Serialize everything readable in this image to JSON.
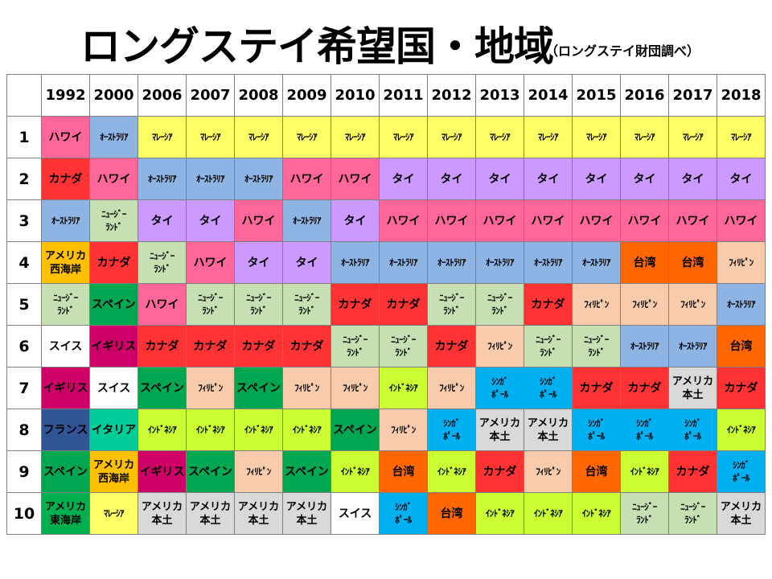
{
  "title": "ロングステイ希望国・地域",
  "subtitle": "（ロングステイ財団調べ）",
  "corner": "",
  "years": [
    "1992",
    "2000",
    "2006",
    "2007",
    "2008",
    "2009",
    "2010",
    "2011",
    "2012",
    "2013",
    "2014",
    "2015",
    "2016",
    "2017",
    "2018"
  ],
  "colors": {
    "ハワイ": "#ff6699",
    "ｵｰｽﾄﾗﾘｱ": "#8eb4e3",
    "ﾏﾚｰｼｱ": "#ffff66",
    "カナダ": "#ff3333",
    "タイ": "#cc99ff",
    "ﾆｭｰｼﾞｰﾗﾝﾄﾞ": "#c6e0b4",
    "アメリカ西海岸": "#ffc000",
    "スペイン": "#00a650",
    "スイス": "#ffffff",
    "イギリス": "#cc0066",
    "フランス": "#305496",
    "イタリア": "#00cc99",
    "アメリカ東海岸": "#00b050",
    "ﾌｨﾘﾋﾟﾝ": "#f8cbad",
    "ｲﾝﾄﾞﾈｼｱ": "#ccff33",
    "台湾": "#ff6600",
    "ｼﾝｶﾞﾎﾟｰﾙ": "#00b0f0",
    "アメリカ本土": "#d9d9d9"
  },
  "rows": [
    {
      "rank": "1",
      "cells": [
        "ハワイ",
        "ｵｰｽﾄﾗﾘｱ",
        "ﾏﾚｰｼｱ",
        "ﾏﾚｰｼｱ",
        "ﾏﾚｰｼｱ",
        "ﾏﾚｰｼｱ",
        "ﾏﾚｰｼｱ",
        "ﾏﾚｰｼｱ",
        "ﾏﾚｰｼｱ",
        "ﾏﾚｰｼｱ",
        "ﾏﾚｰｼｱ",
        "ﾏﾚｰｼｱ",
        "ﾏﾚｰｼｱ",
        "ﾏﾚｰｼｱ",
        "ﾏﾚｰｼｱ"
      ]
    },
    {
      "rank": "2",
      "cells": [
        "カナダ",
        "ハワイ",
        "ｵｰｽﾄﾗﾘｱ",
        "ｵｰｽﾄﾗﾘｱ",
        "ｵｰｽﾄﾗﾘｱ",
        "ハワイ",
        "ハワイ",
        "タイ",
        "タイ",
        "タイ",
        "タイ",
        "タイ",
        "タイ",
        "タイ",
        "タイ"
      ]
    },
    {
      "rank": "3",
      "cells": [
        "ｵｰｽﾄﾗﾘｱ",
        "ﾆｭｰｼﾞｰﾗﾝﾄﾞ",
        "タイ",
        "タイ",
        "ハワイ",
        "ｵｰｽﾄﾗﾘｱ",
        "タイ",
        "ハワイ",
        "ハワイ",
        "ハワイ",
        "ハワイ",
        "ハワイ",
        "ハワイ",
        "ハワイ",
        "ハワイ"
      ]
    },
    {
      "rank": "4",
      "cells": [
        "アメリカ西海岸",
        "カナダ",
        "ﾆｭｰｼﾞｰﾗﾝﾄﾞ",
        "ハワイ",
        "タイ",
        "タイ",
        "ｵｰｽﾄﾗﾘｱ",
        "ｵｰｽﾄﾗﾘｱ",
        "ｵｰｽﾄﾗﾘｱ",
        "ｵｰｽﾄﾗﾘｱ",
        "ｵｰｽﾄﾗﾘｱ",
        "ｵｰｽﾄﾗﾘｱ",
        "台湾",
        "台湾",
        "ﾌｨﾘﾋﾟﾝ"
      ]
    },
    {
      "rank": "5",
      "cells": [
        "ﾆｭｰｼﾞｰﾗﾝﾄﾞ",
        "スペイン",
        "ハワイ",
        "ﾆｭｰｼﾞｰﾗﾝﾄﾞ",
        "ﾆｭｰｼﾞｰﾗﾝﾄﾞ",
        "ﾆｭｰｼﾞｰﾗﾝﾄﾞ",
        "カナダ",
        "カナダ",
        "ﾆｭｰｼﾞｰﾗﾝﾄﾞ",
        "ﾆｭｰｼﾞｰﾗﾝﾄﾞ",
        "カナダ",
        "ﾌｨﾘﾋﾟﾝ",
        "ﾌｨﾘﾋﾟﾝ",
        "ﾌｨﾘﾋﾟﾝ",
        "ｵｰｽﾄﾗﾘｱ"
      ]
    },
    {
      "rank": "6",
      "cells": [
        "スイス",
        "イギリス",
        "カナダ",
        "カナダ",
        "カナダ",
        "カナダ",
        "ﾆｭｰｼﾞｰﾗﾝﾄﾞ",
        "ﾆｭｰｼﾞｰﾗﾝﾄﾞ",
        "カナダ",
        "ﾌｨﾘﾋﾟﾝ",
        "ﾆｭｰｼﾞｰﾗﾝﾄﾞ",
        "ﾆｭｰｼﾞｰﾗﾝﾄﾞ",
        "ｵｰｽﾄﾗﾘｱ",
        "ｵｰｽﾄﾗﾘｱ",
        "台湾"
      ]
    },
    {
      "rank": "7",
      "cells": [
        "イギリス",
        "スイス",
        "スペイン",
        "ﾌｨﾘﾋﾟﾝ",
        "スペイン",
        "ﾌｨﾘﾋﾟﾝ",
        "ﾌｨﾘﾋﾟﾝ",
        "ｲﾝﾄﾞﾈｼｱ",
        "ﾌｨﾘﾋﾟﾝ",
        "ｼﾝｶﾞﾎﾟｰﾙ",
        "ｼﾝｶﾞﾎﾟｰﾙ",
        "カナダ",
        "カナダ",
        "アメリカ本土",
        "カナダ"
      ]
    },
    {
      "rank": "8",
      "cells": [
        "フランス",
        "イタリア",
        "ｲﾝﾄﾞﾈｼｱ",
        "ｲﾝﾄﾞﾈｼｱ",
        "ｲﾝﾄﾞﾈｼｱ",
        "ｲﾝﾄﾞﾈｼｱ",
        "スペイン",
        "ﾌｨﾘﾋﾟﾝ",
        "ｼﾝｶﾞﾎﾟｰﾙ",
        "アメリカ本土",
        "アメリカ本土",
        "ｼﾝｶﾞﾎﾟｰﾙ",
        "ｼﾝｶﾞﾎﾟｰﾙ",
        "ｼﾝｶﾞﾎﾟｰﾙ",
        "ｲﾝﾄﾞﾈｼｱ"
      ]
    },
    {
      "rank": "9",
      "cells": [
        "スペイン",
        "アメリカ西海岸",
        "イギリス",
        "スペイン",
        "ﾌｨﾘﾋﾟﾝ",
        "スペイン",
        "ｲﾝﾄﾞﾈｼｱ",
        "台湾",
        "ｲﾝﾄﾞﾈｼｱ",
        "カナダ",
        "ﾌｨﾘﾋﾟﾝ",
        "台湾",
        "ｲﾝﾄﾞﾈｼｱ",
        "カナダ",
        "ｼﾝｶﾞﾎﾟｰﾙ"
      ]
    },
    {
      "rank": "10",
      "cells": [
        "アメリカ東海岸",
        "ﾏﾚｰｼｱ",
        "アメリカ本土",
        "アメリカ本土",
        "アメリカ本土",
        "アメリカ本土",
        "スイス",
        "ｼﾝｶﾞﾎﾟｰﾙ",
        "台湾",
        "ｲﾝﾄﾞﾈｼｱ",
        "ｲﾝﾄﾞﾈｼｱ",
        "ｲﾝﾄﾞﾈｼｱ",
        "ﾆｭｰｼﾞｰﾗﾝﾄﾞ",
        "ﾆｭｰｼﾞｰﾗﾝﾄﾞ",
        "アメリカ本土"
      ]
    }
  ]
}
